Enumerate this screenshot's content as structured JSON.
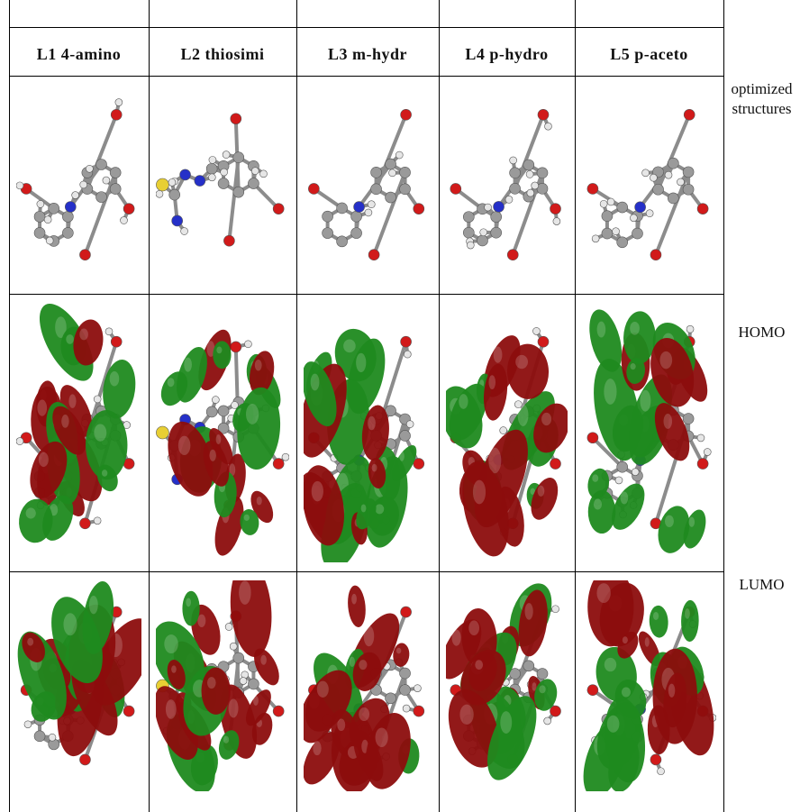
{
  "table": {
    "headers": [
      "L1 4-amino",
      "L2 thiosimi",
      "L3 m-hydr",
      "L4 p-hydro",
      "L5 p-aceto",
      ""
    ],
    "rows": [
      {
        "label_line1": "optimized",
        "label_line2": "structures",
        "image": "optimized-structure-image"
      },
      {
        "label_line1": "HOMO",
        "label_line2": "",
        "image": "homo-orbital-image"
      },
      {
        "label_line1": "LUMO",
        "label_line2": "",
        "image": "lumo-orbital-image"
      }
    ]
  },
  "colors": {
    "carbon": "#9a9a9a",
    "hydrogen": "#e6e6e6",
    "oxygen": "#d11a1a",
    "nitrogen": "#2530c8",
    "sulfur": "#e8cf34",
    "lobe_positive": "#1f8a1f",
    "lobe_negative": "#8c0d0d"
  }
}
